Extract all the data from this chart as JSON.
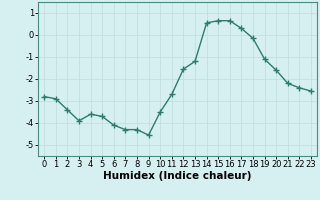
{
  "x": [
    0,
    1,
    2,
    3,
    4,
    5,
    6,
    7,
    8,
    9,
    10,
    11,
    12,
    13,
    14,
    15,
    16,
    17,
    18,
    19,
    20,
    21,
    22,
    23
  ],
  "y": [
    -2.8,
    -2.9,
    -3.4,
    -3.9,
    -3.6,
    -3.7,
    -4.1,
    -4.3,
    -4.3,
    -4.55,
    -3.5,
    -2.7,
    -1.55,
    -1.2,
    0.55,
    0.65,
    0.65,
    0.3,
    -0.15,
    -1.1,
    -1.6,
    -2.2,
    -2.4,
    -2.55
  ],
  "line_color": "#2e7d6b",
  "marker": "+",
  "marker_size": 4,
  "bg_color": "#d6eff0",
  "grid_color": "#c0dcdd",
  "xlabel": "Humidex (Indice chaleur)",
  "ylim": [
    -5.5,
    1.5
  ],
  "xlim": [
    -0.5,
    23.5
  ],
  "yticks": [
    -5,
    -4,
    -3,
    -2,
    -1,
    0,
    1
  ],
  "xticks": [
    0,
    1,
    2,
    3,
    4,
    5,
    6,
    7,
    8,
    9,
    10,
    11,
    12,
    13,
    14,
    15,
    16,
    17,
    18,
    19,
    20,
    21,
    22,
    23
  ],
  "xlabel_fontsize": 7.5,
  "tick_fontsize": 6,
  "line_width": 1.0,
  "marker_lw": 1.0
}
